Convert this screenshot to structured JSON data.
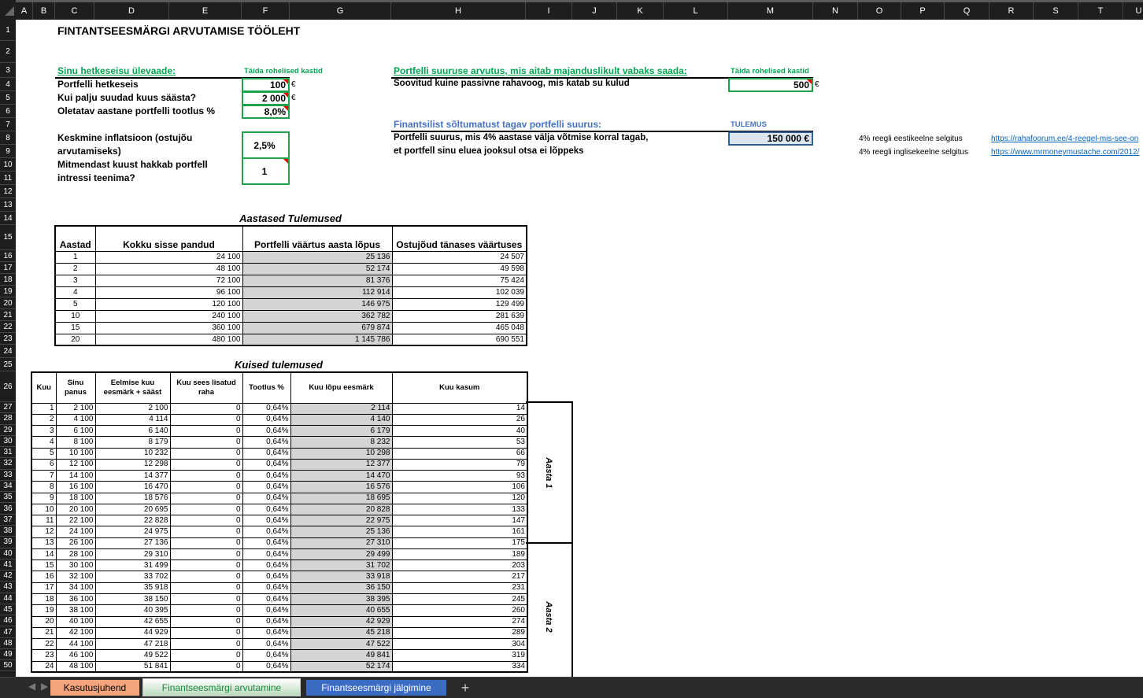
{
  "columns": [
    "A",
    "B",
    "C",
    "D",
    "E",
    "F",
    "G",
    "H",
    "I",
    "J",
    "K",
    "L",
    "M",
    "N",
    "O",
    "P",
    "Q",
    "R",
    "S",
    "T",
    "U"
  ],
  "rows": [
    1,
    2,
    3,
    4,
    5,
    6,
    7,
    8,
    9,
    10,
    11,
    12,
    13,
    14,
    15,
    16,
    17,
    18,
    19,
    20,
    21,
    22,
    23,
    24,
    25,
    26,
    27,
    28,
    29,
    30,
    31,
    32,
    33,
    34,
    35,
    36,
    37,
    38,
    39,
    40,
    41,
    42,
    43,
    44,
    45,
    46,
    47,
    48,
    49,
    50
  ],
  "title": "FINTANTSEESMÄRGI ARVUTAMISE TÖÖLEHT",
  "overview": {
    "heading": "Sinu hetkeseisu ülevaade:",
    "hint": "Täida rohelised kastid",
    "portfolio_label": "Portfelli hetkeseis",
    "portfolio_value": "100",
    "savings_label": "Kui palju suudad kuus säästa?",
    "savings_value": "2 000",
    "return_label": "Oletatav aastane portfelli tootlus %",
    "return_value": "8,0%",
    "inflation_label_1": "Keskmine inflatsioon (ostujõu",
    "inflation_label_2": "arvutamiseks)",
    "inflation_value": "2,5%",
    "start_label_1": "Mitmendast kuust hakkab portfell",
    "start_label_2": "intressi teenima?",
    "start_value": "1",
    "currency": "€"
  },
  "size_calc": {
    "heading": "Portfelli suuruse arvutus, mis aitab majanduslikult vabaks saada:",
    "hint": "Täida rohelised kastid",
    "cashflow_label": "Soovitud kuine passivne rahavoog, mis katab su kulud",
    "cashflow_value": "500",
    "currency": "€",
    "result_heading": "Finantsilist sõltumatust tagav portfelli suurus:",
    "result_hint": "TULEMUS",
    "result_label_1": "Portfelli suurus, mis 4% aastase välja võtmise korral tagab,",
    "result_label_2": "et portfell sinu eluea jooksul otsa ei lõppeks",
    "result_value": "150 000 €"
  },
  "links": [
    {
      "label": "4% reegli eestikeelne selgitus",
      "url": "https://rahafoorum.ee/4-reegel-mis-see-on"
    },
    {
      "label": "4% reegli inglisekeelne selgitus",
      "url": "https://www.mrmoneymustache.com/2012/"
    }
  ],
  "yearly": {
    "title": "Aastased Tulemused",
    "headers": [
      "Aastad",
      "Kokku sisse pandud",
      "Portfelli väärtus aasta lõpus",
      "Ostujõud tänases väärtuses"
    ],
    "rows": [
      [
        "1",
        "24 100",
        "25 136",
        "24 507"
      ],
      [
        "2",
        "48 100",
        "52 174",
        "49 598"
      ],
      [
        "3",
        "72 100",
        "81 376",
        "75 424"
      ],
      [
        "4",
        "96 100",
        "112 914",
        "102 039"
      ],
      [
        "5",
        "120 100",
        "146 975",
        "129 499"
      ],
      [
        "10",
        "240 100",
        "362 782",
        "281 639"
      ],
      [
        "15",
        "360 100",
        "679 874",
        "465 048"
      ],
      [
        "20",
        "480 100",
        "1 145 786",
        "690 551"
      ]
    ]
  },
  "monthly": {
    "title": "Kuised tulemused",
    "headers": [
      "Kuu",
      "Sinu panus",
      "Eelmise kuu eesmärk + sääst",
      "Kuu sees lisatud raha",
      "Tootlus %",
      "Kuu lõpu eesmärk",
      "Kuu kasum"
    ],
    "rows": [
      [
        "1",
        "2 100",
        "2 100",
        "0",
        "0,64%",
        "2 114",
        "14"
      ],
      [
        "2",
        "4 100",
        "4 114",
        "0",
        "0,64%",
        "4 140",
        "26"
      ],
      [
        "3",
        "6 100",
        "6 140",
        "0",
        "0,64%",
        "6 179",
        "40"
      ],
      [
        "4",
        "8 100",
        "8 179",
        "0",
        "0,64%",
        "8 232",
        "53"
      ],
      [
        "5",
        "10 100",
        "10 232",
        "0",
        "0,64%",
        "10 298",
        "66"
      ],
      [
        "6",
        "12 100",
        "12 298",
        "0",
        "0,64%",
        "12 377",
        "79"
      ],
      [
        "7",
        "14 100",
        "14 377",
        "0",
        "0,64%",
        "14 470",
        "93"
      ],
      [
        "8",
        "16 100",
        "16 470",
        "0",
        "0,64%",
        "16 576",
        "106"
      ],
      [
        "9",
        "18 100",
        "18 576",
        "0",
        "0,64%",
        "18 695",
        "120"
      ],
      [
        "10",
        "20 100",
        "20 695",
        "0",
        "0,64%",
        "20 828",
        "133"
      ],
      [
        "11",
        "22 100",
        "22 828",
        "0",
        "0,64%",
        "22 975",
        "147"
      ],
      [
        "12",
        "24 100",
        "24 975",
        "0",
        "0,64%",
        "25 136",
        "161"
      ],
      [
        "13",
        "26 100",
        "27 136",
        "0",
        "0,64%",
        "27 310",
        "175"
      ],
      [
        "14",
        "28 100",
        "29 310",
        "0",
        "0,64%",
        "29 499",
        "189"
      ],
      [
        "15",
        "30 100",
        "31 499",
        "0",
        "0,64%",
        "31 702",
        "203"
      ],
      [
        "16",
        "32 100",
        "33 702",
        "0",
        "0,64%",
        "33 918",
        "217"
      ],
      [
        "17",
        "34 100",
        "35 918",
        "0",
        "0,64%",
        "36 150",
        "231"
      ],
      [
        "18",
        "36 100",
        "38 150",
        "0",
        "0,64%",
        "38 395",
        "245"
      ],
      [
        "19",
        "38 100",
        "40 395",
        "0",
        "0,64%",
        "40 655",
        "260"
      ],
      [
        "20",
        "40 100",
        "42 655",
        "0",
        "0,64%",
        "42 929",
        "274"
      ],
      [
        "21",
        "42 100",
        "44 929",
        "0",
        "0,64%",
        "45 218",
        "289"
      ],
      [
        "22",
        "44 100",
        "47 218",
        "0",
        "0,64%",
        "47 522",
        "304"
      ],
      [
        "23",
        "46 100",
        "49 522",
        "0",
        "0,64%",
        "49 841",
        "319"
      ],
      [
        "24",
        "48 100",
        "51 841",
        "0",
        "0,64%",
        "52 174",
        "334"
      ]
    ],
    "year_labels": [
      "Aasta 1",
      "Aasta 2"
    ]
  },
  "tabs": [
    {
      "label": "Kasutusjuhend",
      "color": "#f4a47c"
    },
    {
      "label": "Finantseesmärgi arvutamine",
      "color": "#1a8a3c",
      "active": true
    },
    {
      "label": "Finantseesmärgi jälgimine",
      "color": "#3a6cc4"
    }
  ],
  "add_sheet": "+"
}
